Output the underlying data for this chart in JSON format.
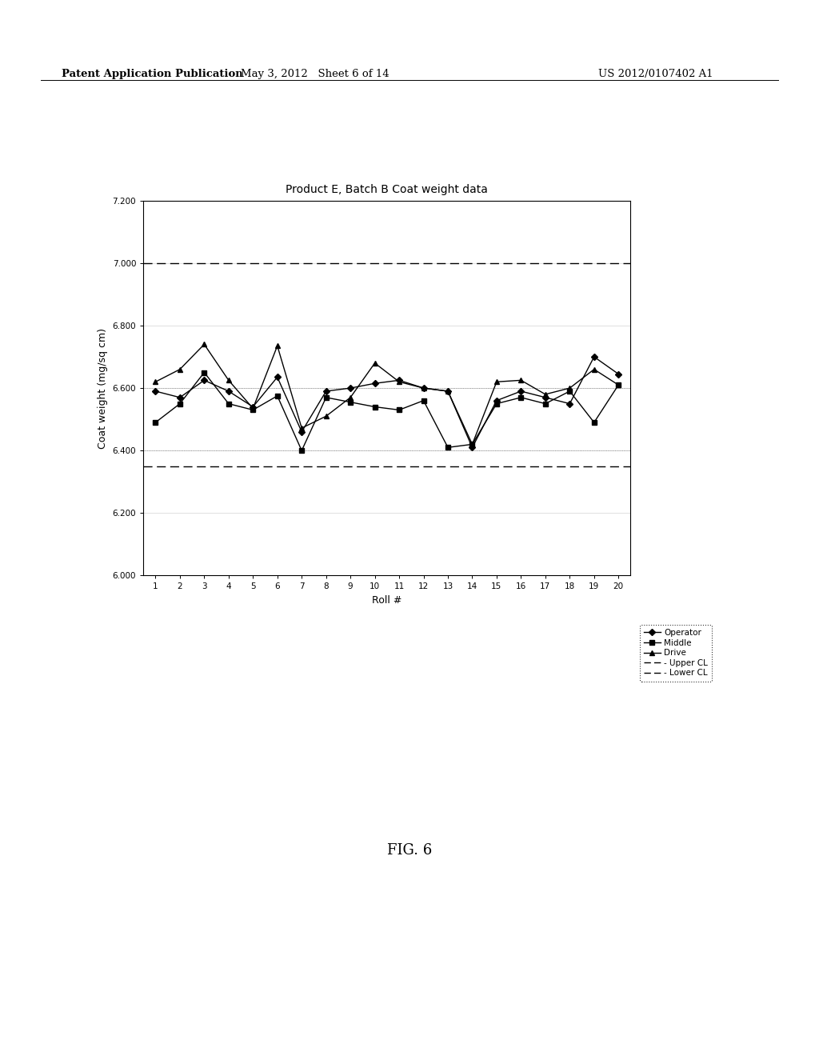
{
  "title": "Product E, Batch B Coat weight data",
  "xlabel": "Roll #",
  "ylabel": "Coat weight (mg/sq cm)",
  "rolls": [
    1,
    2,
    3,
    4,
    5,
    6,
    7,
    8,
    9,
    10,
    11,
    12,
    13,
    14,
    15,
    16,
    17,
    18,
    19,
    20
  ],
  "operator": [
    6.59,
    6.57,
    6.625,
    6.59,
    6.54,
    6.635,
    6.46,
    6.59,
    6.6,
    6.615,
    6.625,
    6.6,
    6.59,
    6.41,
    6.56,
    6.59,
    6.57,
    6.55,
    6.7,
    6.645
  ],
  "middle": [
    6.49,
    6.55,
    6.65,
    6.55,
    6.53,
    6.575,
    6.4,
    6.57,
    6.555,
    6.54,
    6.53,
    6.56,
    6.41,
    6.42,
    6.55,
    6.57,
    6.55,
    6.59,
    6.49,
    6.61
  ],
  "drive": [
    6.62,
    6.66,
    6.74,
    6.625,
    6.535,
    6.735,
    6.472,
    6.51,
    6.57,
    6.68,
    6.62,
    6.6,
    6.59,
    6.42,
    6.62,
    6.625,
    6.58,
    6.6,
    6.66,
    6.61
  ],
  "upper_cl": 7.0,
  "lower_cl": 6.35,
  "ylim": [
    6.0,
    7.2
  ],
  "yticks": [
    6.0,
    6.2,
    6.4,
    6.6,
    6.8,
    7.0,
    7.2
  ],
  "header_left": "Patent Application Publication",
  "header_mid": "May 3, 2012   Sheet 6 of 14",
  "header_right": "US 2012/0107402 A1",
  "fig_label": "FIG. 6"
}
